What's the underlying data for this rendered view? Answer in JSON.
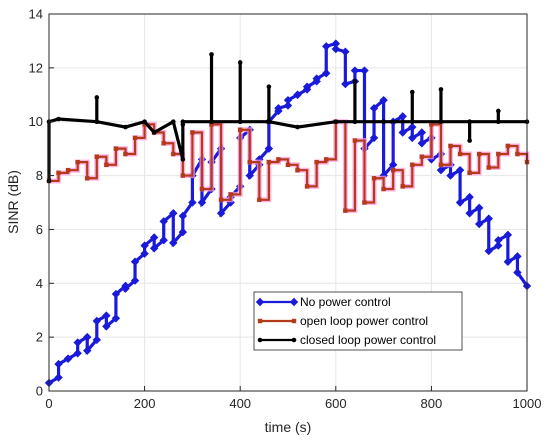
{
  "chart_data": {
    "type": "line",
    "title": "",
    "xlabel": "time (s)",
    "ylabel": "SINR (dB)",
    "xlim": [
      0,
      1000
    ],
    "ylim": [
      0,
      14
    ],
    "xticks": [
      0,
      200,
      400,
      600,
      800,
      1000
    ],
    "yticks": [
      0,
      2,
      4,
      6,
      8,
      10,
      12,
      14
    ],
    "grid": true,
    "legend_position": "lower-right",
    "series": [
      {
        "name": "No power control",
        "color": "#1a1adb",
        "marker": "diamond",
        "step": false,
        "x": [
          0,
          20,
          20,
          40,
          40,
          60,
          60,
          80,
          80,
          100,
          100,
          120,
          120,
          140,
          140,
          160,
          160,
          180,
          180,
          200,
          200,
          220,
          220,
          240,
          240,
          260,
          260,
          280,
          280,
          300,
          300,
          320,
          320,
          340,
          340,
          360,
          360,
          380,
          380,
          400,
          400,
          420,
          420,
          440,
          440,
          460,
          460,
          480,
          480,
          500,
          500,
          520,
          520,
          540,
          540,
          560,
          560,
          580,
          580,
          600,
          600,
          620,
          620,
          640,
          640,
          660,
          660,
          680,
          680,
          700,
          700,
          720,
          720,
          740,
          740,
          760,
          760,
          780,
          780,
          800,
          800,
          820,
          820,
          840,
          840,
          860,
          860,
          880,
          880,
          900,
          900,
          920,
          920,
          940,
          940,
          960,
          960,
          980,
          980,
          1000
        ],
        "values": [
          0.3,
          0.5,
          1.0,
          1.2,
          1.2,
          1.4,
          1.8,
          2.0,
          1.5,
          1.9,
          2.6,
          2.8,
          2.4,
          2.7,
          3.6,
          3.9,
          3.8,
          4.1,
          4.8,
          5.1,
          5.4,
          5.7,
          5.3,
          5.6,
          6.3,
          6.6,
          5.5,
          5.9,
          6.5,
          7.0,
          8.0,
          8.6,
          7.0,
          7.5,
          8.5,
          9.0,
          6.6,
          7.0,
          7.2,
          7.6,
          9.4,
          9.7,
          8.0,
          8.4,
          8.6,
          9.0,
          10.0,
          10.4,
          10.5,
          10.6,
          10.8,
          11.0,
          11.0,
          11.2,
          11.3,
          11.5,
          11.6,
          11.8,
          12.8,
          12.9,
          12.7,
          12.6,
          11.4,
          11.5,
          11.9,
          11.9,
          9.0,
          9.4,
          10.5,
          10.8,
          8.0,
          8.4,
          10.0,
          10.2,
          9.6,
          9.8,
          9.4,
          9.6,
          9.2,
          9.4,
          8.6,
          8.8,
          8.2,
          8.4,
          8.0,
          8.2,
          7.0,
          7.2,
          6.6,
          6.8,
          6.2,
          6.4,
          5.2,
          5.4,
          5.6,
          5.8,
          4.8,
          5.0,
          4.4,
          3.9
        ]
      },
      {
        "name": "open loop power control",
        "color": "#b53a1a",
        "marker": "square",
        "step": true,
        "x": [
          0,
          20,
          40,
          60,
          80,
          100,
          120,
          140,
          160,
          180,
          200,
          220,
          240,
          260,
          280,
          300,
          320,
          340,
          360,
          380,
          400,
          420,
          440,
          460,
          480,
          500,
          520,
          540,
          560,
          580,
          600,
          620,
          640,
          660,
          680,
          700,
          720,
          740,
          760,
          780,
          800,
          820,
          840,
          860,
          880,
          900,
          920,
          940,
          960,
          980,
          1000
        ],
        "values": [
          7.8,
          8.1,
          8.2,
          8.5,
          7.9,
          8.7,
          8.4,
          9.0,
          8.8,
          9.4,
          9.9,
          9.6,
          9.2,
          8.8,
          8.0,
          9.6,
          7.5,
          9.9,
          7.1,
          7.3,
          9.7,
          8.5,
          7.1,
          8.5,
          8.6,
          8.4,
          8.2,
          7.6,
          8.5,
          8.6,
          10.0,
          6.7,
          9.3,
          7.0,
          7.9,
          7.5,
          8.2,
          7.6,
          8.4,
          8.7,
          9.9,
          8.4,
          9.1,
          8.8,
          8.1,
          8.8,
          8.3,
          8.8,
          9.1,
          8.8,
          8.5
        ]
      },
      {
        "name": "closed loop power control",
        "color": "#000000",
        "marker": "circle",
        "step": false,
        "x": [
          0,
          0,
          20,
          100,
          100,
          100,
          160,
          200,
          220,
          260,
          280,
          280,
          280,
          340,
          340,
          340,
          400,
          400,
          400,
          460,
          460,
          460,
          520,
          600,
          640,
          640,
          640,
          700,
          760,
          760,
          760,
          820,
          820,
          820,
          880,
          880,
          880,
          940,
          940,
          940,
          1000
        ],
        "values": [
          7.8,
          10.0,
          10.1,
          10.0,
          10.9,
          10.0,
          9.8,
          10.0,
          9.6,
          10.0,
          8.6,
          9.9,
          10.0,
          10.0,
          12.5,
          10.0,
          10.0,
          12.2,
          10.0,
          10.0,
          11.3,
          10.0,
          9.8,
          10.0,
          10.0,
          11.5,
          10.0,
          10.0,
          10.0,
          11.1,
          10.0,
          10.0,
          11.2,
          10.0,
          10.0,
          9.3,
          10.0,
          10.0,
          10.4,
          10.0,
          10.0
        ]
      }
    ]
  }
}
